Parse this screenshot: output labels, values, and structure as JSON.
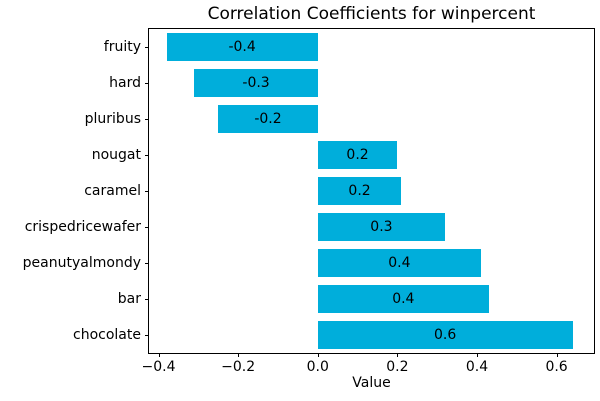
{
  "chart_data": {
    "type": "bar",
    "orientation": "horizontal",
    "title": "Correlation Coefficients for winpercent",
    "xlabel": "Value",
    "ylabel": "",
    "categories": [
      "fruity",
      "hard",
      "pluribus",
      "nougat",
      "caramel",
      "crispedricewafer",
      "peanutyalmondy",
      "bar",
      "chocolate"
    ],
    "values": [
      -0.38,
      -0.31,
      -0.25,
      0.2,
      0.21,
      0.32,
      0.41,
      0.43,
      0.64
    ],
    "bar_labels": [
      "-0.4",
      "-0.3",
      "-0.2",
      "0.2",
      "0.2",
      "0.3",
      "0.4",
      "0.4",
      "0.6"
    ],
    "x_ticks": [
      -0.4,
      -0.2,
      0.0,
      0.2,
      0.4,
      0.6
    ],
    "x_tick_labels": [
      "−0.4",
      "−0.2",
      "0.0",
      "0.2",
      "0.4",
      "0.6"
    ],
    "xlim": [
      -0.424,
      0.694
    ],
    "bar_color": "#00AEDB",
    "bar_height_fraction": 0.8,
    "grid": false,
    "legend": null
  }
}
